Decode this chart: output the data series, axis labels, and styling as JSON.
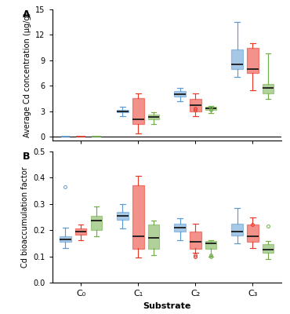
{
  "panel_A": {
    "title": "A",
    "ylabel": "Average Cd concentration (μg/g)",
    "ylim": [
      -0.5,
      15
    ],
    "yticks": [
      0,
      3,
      6,
      9,
      12,
      15
    ],
    "blue": {
      "C0": {
        "q1": 0.0,
        "median": 0.0,
        "q3": 0.0,
        "whislo": 0.0,
        "whishi": 0.0,
        "fliers": []
      },
      "C1": {
        "q1": 2.85,
        "median": 3.0,
        "q3": 3.15,
        "whislo": 2.4,
        "whishi": 3.5,
        "fliers": []
      },
      "C2": {
        "q1": 4.7,
        "median": 4.95,
        "q3": 5.35,
        "whislo": 4.2,
        "whishi": 5.7,
        "fliers": []
      },
      "C3": {
        "q1": 8.0,
        "median": 8.5,
        "q3": 10.3,
        "whislo": 7.0,
        "whishi": 13.5,
        "fliers": []
      }
    },
    "red": {
      "C0": {
        "q1": 0.0,
        "median": 0.0,
        "q3": 0.0,
        "whislo": 0.0,
        "whishi": 0.0,
        "fliers": []
      },
      "C1": {
        "q1": 1.5,
        "median": 2.0,
        "q3": 4.5,
        "whislo": 0.4,
        "whishi": 5.1,
        "fliers": []
      },
      "C2": {
        "q1": 3.0,
        "median": 3.7,
        "q3": 4.4,
        "whislo": 2.4,
        "whishi": 5.1,
        "fliers": [
          3.3,
          3.1
        ]
      },
      "C3": {
        "q1": 7.5,
        "median": 8.0,
        "q3": 10.5,
        "whislo": 5.5,
        "whishi": 11.0,
        "fliers": []
      }
    },
    "green": {
      "C0": {
        "q1": 0.0,
        "median": 0.0,
        "q3": 0.0,
        "whislo": 0.0,
        "whishi": 0.0,
        "fliers": []
      },
      "C1": {
        "q1": 2.0,
        "median": 2.3,
        "q3": 2.6,
        "whislo": 1.5,
        "whishi": 2.85,
        "fliers": []
      },
      "C2": {
        "q1": 3.15,
        "median": 3.35,
        "q3": 3.5,
        "whislo": 2.8,
        "whishi": 3.6,
        "fliers": [
          3.3,
          3.1
        ]
      },
      "C3": {
        "q1": 5.1,
        "median": 5.7,
        "q3": 6.2,
        "whislo": 4.4,
        "whishi": 9.8,
        "fliers": []
      }
    }
  },
  "panel_B": {
    "title": "B",
    "ylabel": "Cd bioaccumulation factor",
    "ylim": [
      0,
      0.5
    ],
    "yticks": [
      0,
      0.1,
      0.2,
      0.3,
      0.4,
      0.5
    ],
    "blue": {
      "C0": {
        "q1": 0.155,
        "median": 0.165,
        "q3": 0.175,
        "whislo": 0.13,
        "whishi": 0.21,
        "fliers": [
          0.365
        ]
      },
      "C1": {
        "q1": 0.24,
        "median": 0.255,
        "q3": 0.27,
        "whislo": 0.205,
        "whishi": 0.3,
        "fliers": []
      },
      "C2": {
        "q1": 0.195,
        "median": 0.21,
        "q3": 0.225,
        "whislo": 0.16,
        "whishi": 0.245,
        "fliers": []
      },
      "C3": {
        "q1": 0.18,
        "median": 0.195,
        "q3": 0.225,
        "whislo": 0.15,
        "whishi": 0.285,
        "fliers": []
      }
    },
    "red": {
      "C0": {
        "q1": 0.183,
        "median": 0.193,
        "q3": 0.205,
        "whislo": 0.16,
        "whishi": 0.22,
        "fliers": []
      },
      "C1": {
        "q1": 0.13,
        "median": 0.175,
        "q3": 0.37,
        "whislo": 0.095,
        "whishi": 0.405,
        "fliers": []
      },
      "C2": {
        "q1": 0.13,
        "median": 0.155,
        "q3": 0.195,
        "whislo": 0.115,
        "whishi": 0.225,
        "fliers": [
          0.1,
          0.105
        ]
      },
      "C3": {
        "q1": 0.155,
        "median": 0.175,
        "q3": 0.22,
        "whislo": 0.13,
        "whishi": 0.248,
        "fliers": [
          0.22
        ]
      }
    },
    "green": {
      "C0": {
        "q1": 0.2,
        "median": 0.235,
        "q3": 0.255,
        "whislo": 0.175,
        "whishi": 0.29,
        "fliers": []
      },
      "C1": {
        "q1": 0.13,
        "median": 0.17,
        "q3": 0.22,
        "whislo": 0.105,
        "whishi": 0.235,
        "fliers": []
      },
      "C2": {
        "q1": 0.13,
        "median": 0.15,
        "q3": 0.157,
        "whislo": 0.1,
        "whishi": 0.162,
        "fliers": [
          0.1,
          0.105
        ]
      },
      "C3": {
        "q1": 0.115,
        "median": 0.125,
        "q3": 0.145,
        "whislo": 0.09,
        "whishi": 0.158,
        "fliers": [
          0.215
        ]
      }
    }
  },
  "groups": [
    "C₀",
    "C₁",
    "C₂",
    "C₃"
  ],
  "group_keys": [
    "C0",
    "C1",
    "C2",
    "C3"
  ],
  "colors": {
    "blue": "#5B9BD5",
    "red": "#E8392A",
    "green": "#70AD47"
  },
  "fill_alpha": 0.55,
  "xlabel": "Substrate",
  "background": "#FFFFFF",
  "box_width": 0.2,
  "offsets": [
    -0.27,
    0.0,
    0.27
  ]
}
